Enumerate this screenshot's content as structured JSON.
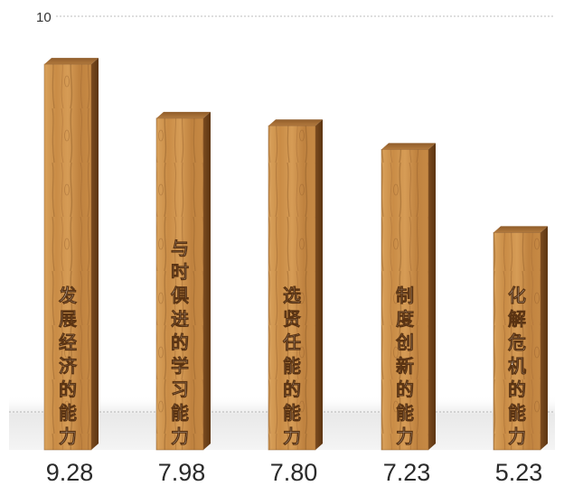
{
  "chart_data": {
    "type": "bar",
    "categories": [
      "发展经济的能力",
      "与时俱进的学习能力",
      "选贤任能的能力",
      "制度创新的能力",
      "化解危机的能力"
    ],
    "values": [
      9.28,
      7.98,
      7.8,
      7.23,
      5.23
    ],
    "value_labels": [
      "9.28",
      "7.98",
      "7.80",
      "7.23",
      "5.23"
    ],
    "yticks": [
      "10"
    ],
    "ylim": [
      0,
      10
    ],
    "grid": true,
    "bar_style": "wooden-plank",
    "colors": {
      "wood_light": "#d79e55",
      "wood_mid": "#b87a3a",
      "wood_dark": "#6e4018",
      "wood_top": "#a9733a",
      "grid": "#bdbdbd",
      "floor": "#e6e6e6"
    }
  }
}
